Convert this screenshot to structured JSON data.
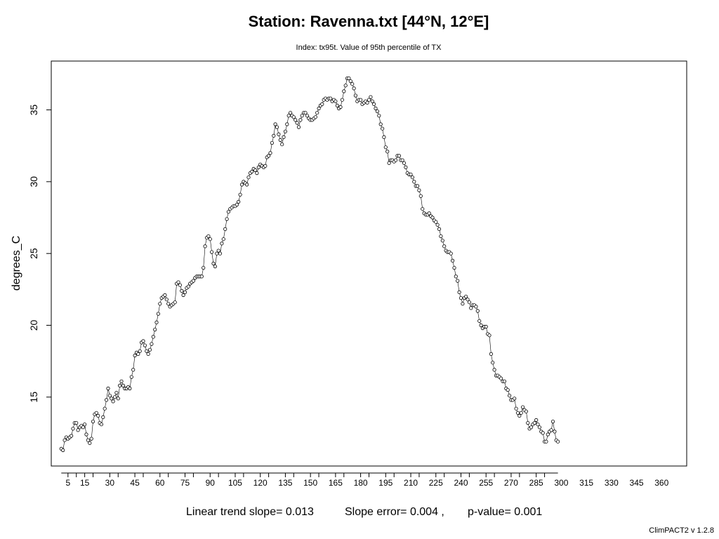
{
  "chart_data": {
    "type": "line",
    "title": "Station: Ravenna.txt [44°N, 12°E]",
    "subtitle": "Index: tx95t. Value of 95th percentile of TX",
    "ylabel": "degrees_C",
    "xlabel": "",
    "xlim": [
      -5,
      375
    ],
    "ylim": [
      10.2,
      38.4
    ],
    "x_ticks": [
      5,
      15,
      30,
      45,
      60,
      75,
      90,
      105,
      120,
      135,
      150,
      165,
      180,
      195,
      210,
      225,
      240,
      255,
      270,
      285,
      300,
      315,
      330,
      345,
      360
    ],
    "y_ticks": [
      15,
      20,
      25,
      30,
      35
    ],
    "series": [
      {
        "x_start": 1,
        "x_step": 1,
        "values": [
          11.4,
          11.3,
          12.0,
          12.2,
          12.1,
          12.2,
          12.3,
          12.8,
          13.2,
          13.2,
          12.7,
          12.9,
          13.0,
          12.9,
          13.1,
          12.4,
          12.0,
          11.8,
          12.1,
          13.3,
          13.8,
          13.9,
          13.7,
          13.2,
          13.1,
          13.6,
          14.2,
          14.8,
          15.6,
          15.1,
          14.9,
          14.7,
          15.0,
          15.3,
          14.9,
          15.8,
          16.1,
          15.8,
          15.6,
          15.6,
          15.7,
          15.6,
          16.4,
          16.9,
          17.9,
          18.1,
          18.0,
          18.2,
          18.8,
          18.9,
          18.6,
          18.2,
          18.0,
          18.3,
          18.7,
          19.2,
          19.7,
          20.2,
          20.8,
          21.5,
          21.9,
          22.0,
          22.1,
          21.8,
          21.5,
          21.3,
          21.4,
          21.5,
          21.6,
          22.9,
          23.0,
          22.8,
          22.4,
          22.1,
          22.3,
          22.6,
          22.7,
          22.9,
          23.0,
          23.1,
          23.3,
          23.4,
          23.4,
          23.4,
          23.4,
          24.0,
          25.5,
          26.1,
          26.2,
          26.0,
          25.1,
          24.3,
          24.1,
          25.0,
          25.2,
          25.0,
          25.7,
          26.0,
          26.7,
          27.4,
          27.9,
          28.1,
          28.2,
          28.3,
          28.3,
          28.4,
          28.6,
          29.1,
          29.8,
          30.0,
          29.9,
          29.8,
          30.3,
          30.6,
          30.7,
          30.9,
          30.8,
          30.6,
          31.0,
          31.2,
          31.1,
          31.0,
          31.1,
          31.7,
          31.8,
          32.0,
          32.7,
          33.2,
          34.0,
          33.8,
          33.3,
          32.9,
          32.6,
          33.1,
          33.5,
          34.0,
          34.6,
          34.8,
          34.6,
          34.5,
          34.3,
          34.1,
          33.8,
          34.3,
          34.6,
          34.8,
          34.8,
          34.6,
          34.4,
          34.3,
          34.3,
          34.4,
          34.5,
          34.8,
          35.1,
          35.3,
          35.4,
          35.7,
          35.8,
          35.7,
          35.8,
          35.8,
          35.6,
          35.7,
          35.6,
          35.3,
          35.1,
          35.2,
          35.7,
          36.3,
          36.7,
          37.2,
          37.2,
          37.0,
          36.8,
          36.5,
          36.0,
          35.6,
          35.7,
          35.7,
          35.4,
          35.5,
          35.6,
          35.5,
          35.7,
          35.9,
          35.6,
          35.4,
          35.1,
          34.9,
          34.6,
          34.0,
          33.7,
          33.1,
          32.4,
          32.1,
          31.3,
          31.5,
          31.5,
          31.4,
          31.5,
          31.8,
          31.8,
          31.5,
          31.5,
          31.3,
          31.0,
          30.6,
          30.5,
          30.5,
          30.3,
          30.0,
          29.7,
          29.7,
          29.4,
          29.0,
          28.1,
          27.8,
          27.7,
          27.7,
          27.8,
          27.6,
          27.5,
          27.3,
          27.2,
          27.0,
          26.7,
          26.2,
          25.9,
          25.5,
          25.2,
          25.1,
          25.1,
          25.0,
          24.5,
          24.0,
          23.4,
          23.1,
          22.3,
          21.9,
          21.5,
          21.9,
          22.0,
          21.8,
          21.6,
          21.2,
          21.4,
          21.4,
          21.3,
          21.0,
          20.3,
          20.0,
          19.8,
          19.9,
          19.9,
          19.4,
          19.3,
          18.0,
          17.4,
          16.9,
          16.5,
          16.5,
          16.4,
          16.3,
          16.1,
          16.1,
          15.6,
          15.5,
          15.1,
          14.8,
          14.8,
          14.9,
          14.2,
          13.9,
          13.7,
          13.9,
          14.3,
          14.1,
          14.0,
          13.2,
          12.8,
          12.9,
          13.1,
          13.2,
          13.4,
          13.1,
          12.9,
          12.6,
          12.5,
          11.9,
          11.9,
          12.4,
          12.6,
          12.7,
          13.3,
          12.6,
          12.0,
          11.9
        ]
      }
    ]
  },
  "footer": {
    "slope_text": "Linear trend slope= 0.013",
    "error_text": "Slope error= 0.004 ,",
    "pvalue_text": "p-value= 0.001",
    "version": "ClimPACT2 v 1.2.8"
  }
}
